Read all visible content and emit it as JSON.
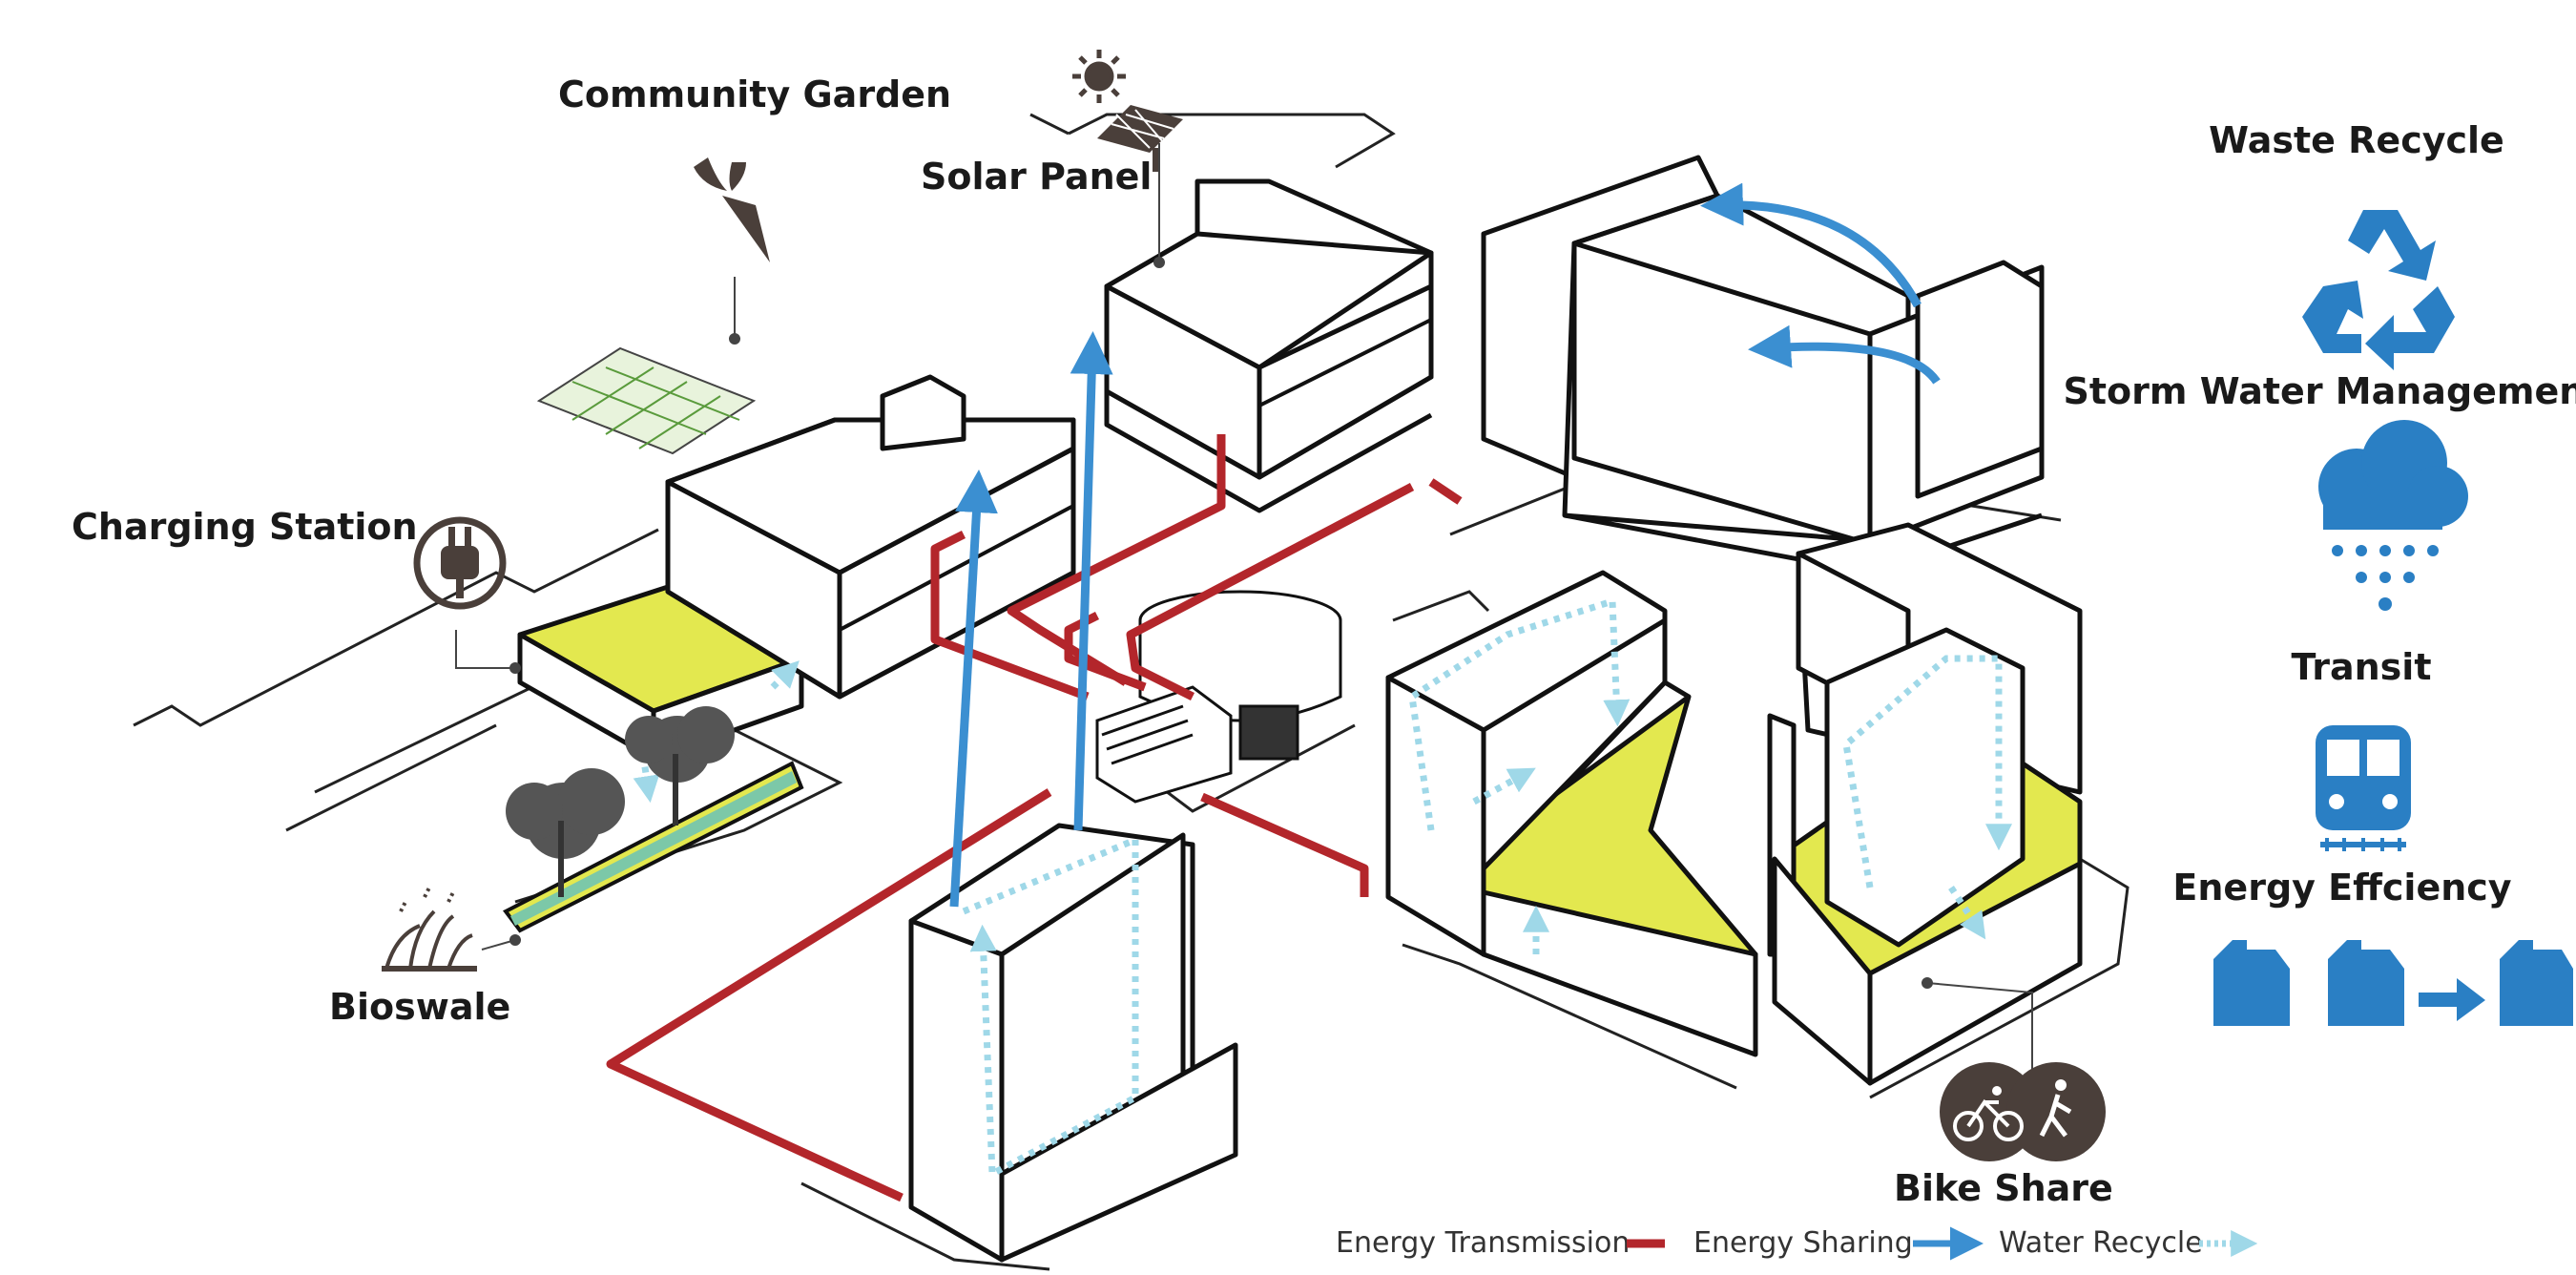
{
  "colors": {
    "energy_transmission": "#b3262b",
    "energy_sharing": "#3b8fd1",
    "water_recycle": "#9fd8e8",
    "roof_green": "#e3e84f",
    "icon_blue": "#2a7fc4",
    "icon_dark": "#4a3f3a",
    "outline": "#111111"
  },
  "labels": {
    "community_garden": "Community Garden",
    "solar_panel": "Solar Panel",
    "charging_station": "Charging Station",
    "bioswale": "Bioswale",
    "bike_share": "Bike Share"
  },
  "sidebar": {
    "items": [
      {
        "label": "Waste Recycle",
        "icon": "recycle-icon"
      },
      {
        "label": "Storm Water Management",
        "icon": "rain-cloud-icon"
      },
      {
        "label": "Transit",
        "icon": "train-icon"
      },
      {
        "label": "Energy Effciency",
        "icon": "fuel-can-icon"
      }
    ]
  },
  "legend": {
    "items": [
      {
        "label": "Energy Transmission",
        "style": "red-dash"
      },
      {
        "label": "Energy Sharing",
        "style": "blue-arrow"
      },
      {
        "label": "Water Recycle",
        "style": "dotted-cyan-arrow"
      }
    ]
  }
}
